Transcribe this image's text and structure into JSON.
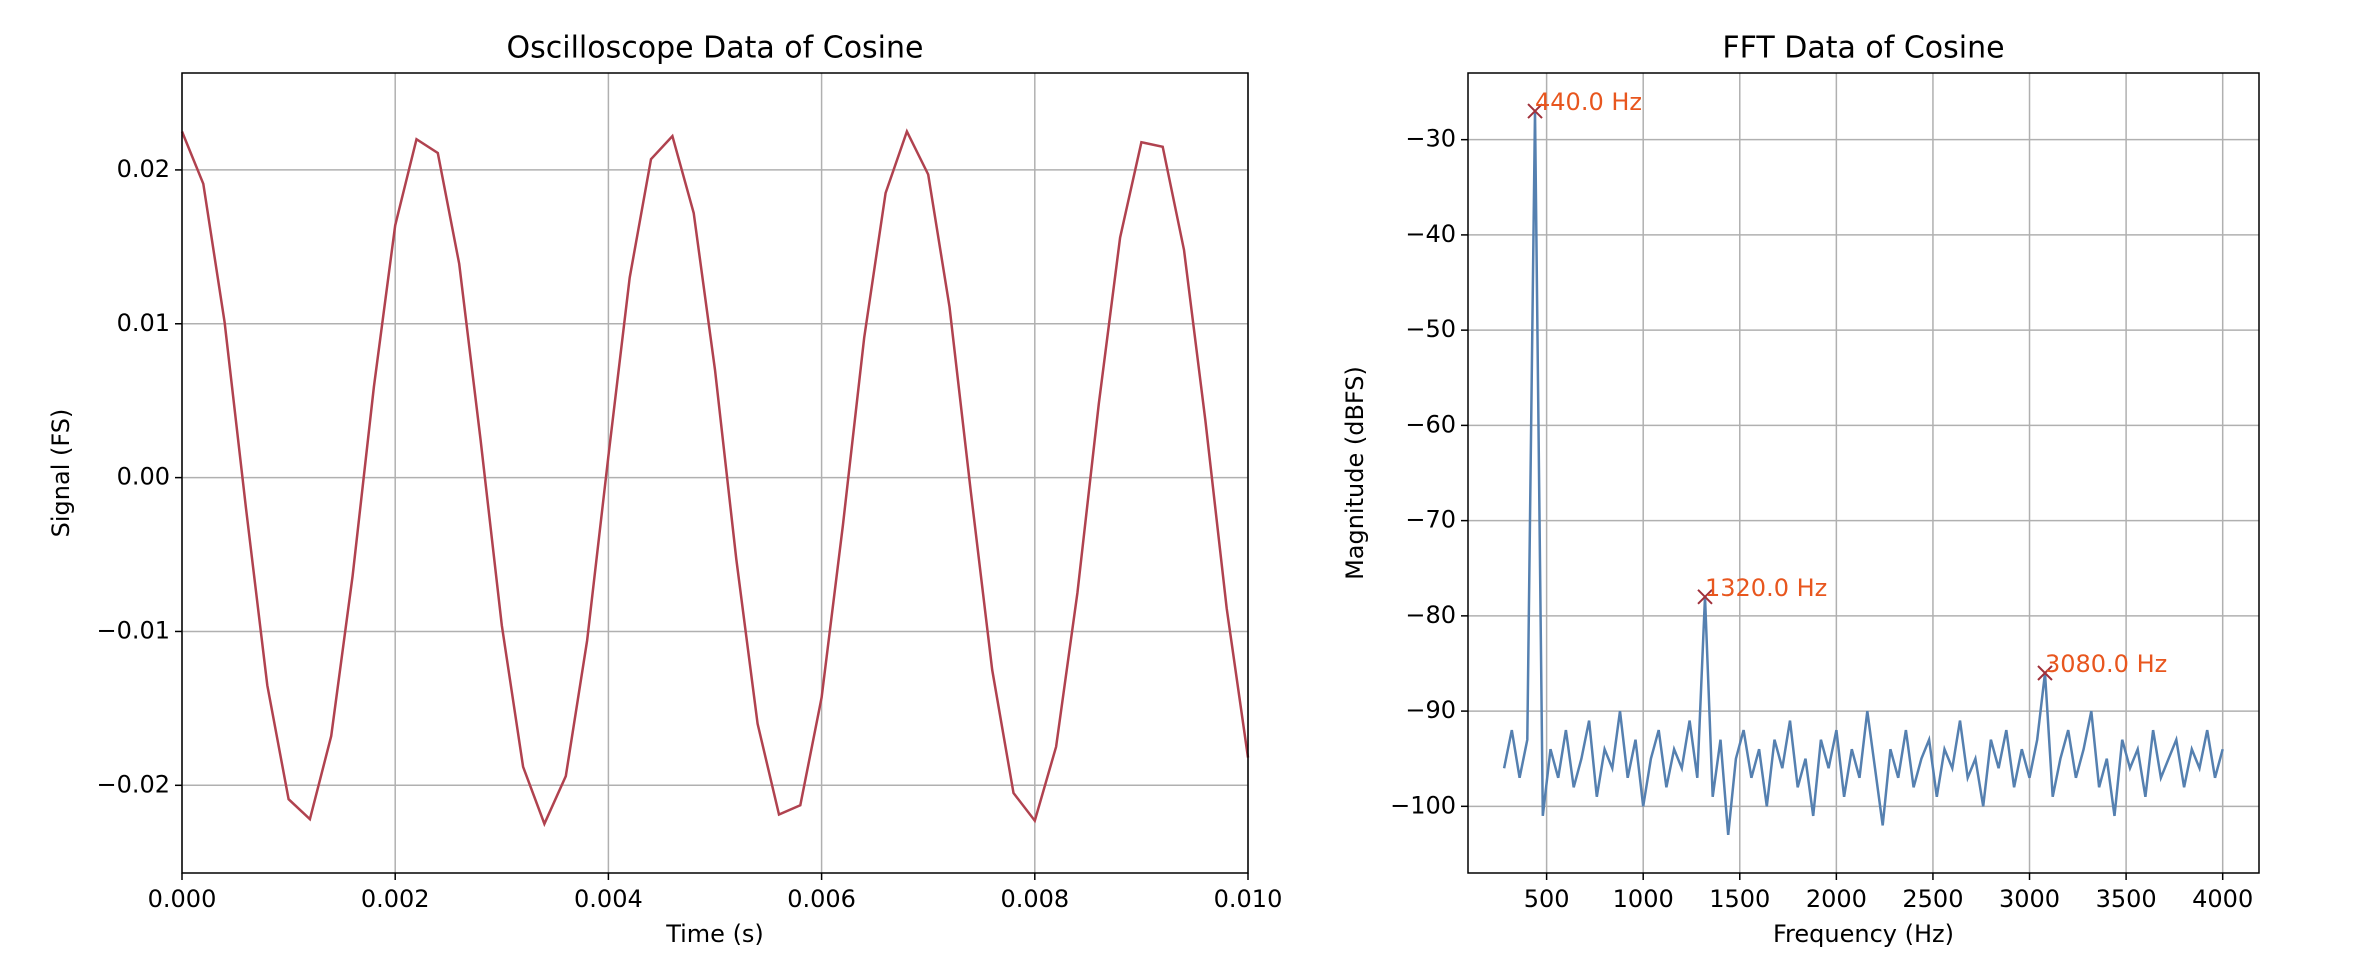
{
  "chart_data": [
    {
      "type": "line",
      "title": "Oscilloscope Data of Cosine",
      "xlabel": "Time (s)",
      "ylabel": "Signal (FS)",
      "x": [
        0,
        0.0002,
        0.0004,
        0.0006,
        0.0008,
        0.001,
        0.0012,
        0.0014,
        0.0016,
        0.0018,
        0.002,
        0.0022,
        0.0024,
        0.0026,
        0.0028,
        0.003,
        0.0032,
        0.0034,
        0.0036,
        0.0038,
        0.004,
        0.0042,
        0.0044,
        0.0046,
        0.0048,
        0.005,
        0.0052,
        0.0054,
        0.0056,
        0.0058,
        0.006,
        0.0062,
        0.0064,
        0.0066,
        0.0068,
        0.007,
        0.0072,
        0.0074,
        0.0076,
        0.0078,
        0.008,
        0.0082,
        0.0084,
        0.0086,
        0.0088,
        0.009,
        0.0092,
        0.0094,
        0.0096,
        0.0098,
        0.01
      ],
      "series": [
        {
          "color": "#b0424f",
          "values": [
            0.0225,
            0.0191,
            0.0101,
            -0.002,
            -0.0135,
            -0.0209,
            -0.0222,
            -0.0168,
            -0.0064,
            0.0059,
            0.0164,
            0.022,
            0.0211,
            0.0139,
            0.0025,
            -0.0096,
            -0.0188,
            -0.0225,
            -0.0194,
            -0.0106,
            0.0014,
            0.013,
            0.0207,
            0.0222,
            0.0172,
            0.007,
            -0.0053,
            -0.016,
            -0.0219,
            -0.0213,
            -0.0143,
            -0.0031,
            0.0091,
            0.0185,
            0.0225,
            0.0197,
            0.0111,
            -0.0009,
            -0.0125,
            -0.0205,
            -0.0223,
            -0.0175,
            -0.0075,
            0.0048,
            0.0156,
            0.0218,
            0.0215,
            0.0148,
            0.0037,
            -0.0085,
            -0.0182
          ]
        }
      ],
      "xlim": [
        0,
        0.01
      ],
      "xticks": [
        {
          "value": 0,
          "label": "0.000"
        },
        {
          "value": 0.002,
          "label": "0.002"
        },
        {
          "value": 0.004,
          "label": "0.004"
        },
        {
          "value": 0.006,
          "label": "0.006"
        },
        {
          "value": 0.008,
          "label": "0.008"
        },
        {
          "value": 0.01,
          "label": "0.010"
        }
      ],
      "ylim": [
        -0.0257,
        0.0263
      ],
      "yticks": [
        {
          "value": -0.02,
          "label": "−0.02"
        },
        {
          "value": -0.01,
          "label": "−0.01"
        },
        {
          "value": 0,
          "label": "0.00"
        },
        {
          "value": 0.01,
          "label": "0.01"
        },
        {
          "value": 0.02,
          "label": "0.02"
        }
      ],
      "grid": true
    },
    {
      "type": "line",
      "title": "FFT Data of Cosine",
      "xlabel": "Frequency (Hz)",
      "ylabel": "Magnitude (dBFS)",
      "x": [
        280,
        320,
        360,
        400,
        440,
        480,
        520,
        560,
        600,
        640,
        680,
        720,
        760,
        800,
        840,
        880,
        920,
        960,
        1000,
        1040,
        1080,
        1120,
        1160,
        1200,
        1240,
        1280,
        1320,
        1360,
        1400,
        1440,
        1480,
        1520,
        1560,
        1600,
        1640,
        1680,
        1720,
        1760,
        1800,
        1840,
        1880,
        1920,
        1960,
        2000,
        2040,
        2080,
        2120,
        2160,
        2200,
        2240,
        2280,
        2320,
        2360,
        2400,
        2440,
        2480,
        2520,
        2560,
        2600,
        2640,
        2680,
        2720,
        2760,
        2800,
        2840,
        2880,
        2920,
        2960,
        3000,
        3040,
        3080,
        3120,
        3160,
        3200,
        3240,
        3280,
        3320,
        3360,
        3400,
        3440,
        3480,
        3520,
        3560,
        3600,
        3640,
        3680,
        3720,
        3760,
        3800,
        3840,
        3880,
        3920,
        3960,
        4000
      ],
      "series": [
        {
          "color": "#5580b0",
          "values": [
            -96,
            -92,
            -97,
            -93,
            -27,
            -101,
            -94,
            -97,
            -92,
            -98,
            -95,
            -91,
            -99,
            -94,
            -96,
            -90,
            -97,
            -93,
            -100,
            -95,
            -92,
            -98,
            -94,
            -96,
            -91,
            -97,
            -78,
            -99,
            -93,
            -103,
            -95,
            -92,
            -97,
            -94,
            -100,
            -93,
            -96,
            -91,
            -98,
            -95,
            -101,
            -93,
            -96,
            -92,
            -99,
            -94,
            -97,
            -90,
            -96,
            -102,
            -94,
            -97,
            -92,
            -98,
            -95,
            -93,
            -99,
            -94,
            -96,
            -91,
            -97,
            -95,
            -100,
            -93,
            -96,
            -92,
            -98,
            -94,
            -97,
            -93,
            -86,
            -99,
            -95,
            -92,
            -97,
            -94,
            -90,
            -98,
            -95,
            -101,
            -93,
            -96,
            -94,
            -99,
            -92,
            -97,
            -95,
            -93,
            -98,
            -94,
            -96,
            -92,
            -97,
            -94
          ]
        }
      ],
      "annotations": [
        {
          "x": 440,
          "y": -27,
          "label": "440.0 Hz"
        },
        {
          "x": 1320,
          "y": -78,
          "label": "1320.0 Hz"
        },
        {
          "x": 3080,
          "y": -86,
          "label": "3080.0 Hz"
        }
      ],
      "annotation_color": "#e8561e",
      "marker_color": "#a0303a",
      "xlim": [
        93,
        4188
      ],
      "xticks": [
        500,
        1000,
        1500,
        2000,
        2500,
        3000,
        3500,
        4000
      ],
      "ylim": [
        -107,
        -23
      ],
      "yticks": [
        {
          "value": -100,
          "label": "−100"
        },
        {
          "value": -90,
          "label": "−90"
        },
        {
          "value": -80,
          "label": "−80"
        },
        {
          "value": -70,
          "label": "−70"
        },
        {
          "value": -60,
          "label": "−60"
        },
        {
          "value": -50,
          "label": "−50"
        },
        {
          "value": -40,
          "label": "−40"
        },
        {
          "value": -30,
          "label": "−30"
        }
      ],
      "grid": true
    }
  ]
}
